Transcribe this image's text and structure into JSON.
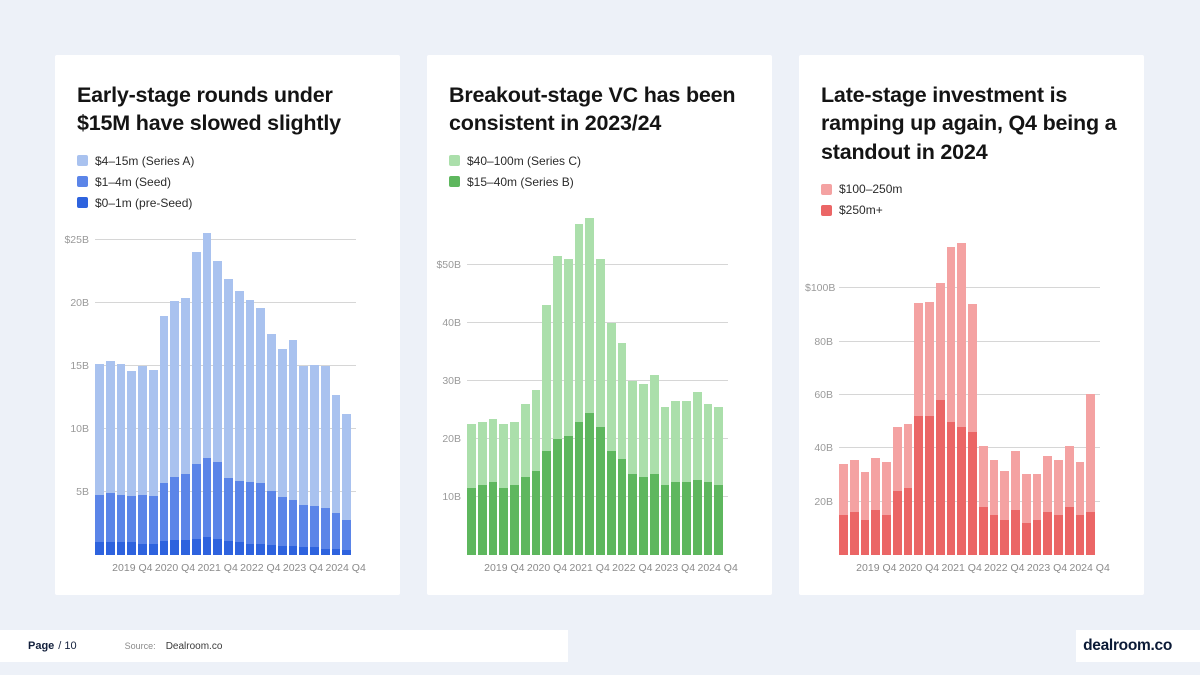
{
  "footer": {
    "page_label": "Page",
    "page_number": "/ 10",
    "source_label": "Source:",
    "source_value": "Dealroom.co",
    "brand": "dealroom.co"
  },
  "colors": {
    "background": "#edf1f8",
    "card": "#ffffff",
    "series_a_blue": "#a9c2ef",
    "seed_blue": "#5b85e8",
    "preseed_blue": "#2e63de",
    "series_c_green": "#abdfab",
    "series_b_green": "#5eb75e",
    "light_red": "#f4a2a2",
    "dark_red": "#eb6666"
  },
  "panels": [
    {
      "title": "Early-stage rounds under $15M have slowed slightly",
      "legend": [
        {
          "label": "$4–15m (Series A)",
          "color": "#a9c2ef"
        },
        {
          "label": "$1–4m (Seed)",
          "color": "#5b85e8"
        },
        {
          "label": "$0–1m (pre-Seed)",
          "color": "#2e63de"
        }
      ]
    },
    {
      "title": "Breakout-stage VC has been consistent in 2023/24",
      "legend": [
        {
          "label": "$40–100m (Series C)",
          "color": "#abdfab"
        },
        {
          "label": "$15–40m (Series B)",
          "color": "#5eb75e"
        }
      ]
    },
    {
      "title": "Late-stage investment is ramping up again, Q4 being a standout in 2024",
      "legend": [
        {
          "label": "$100–250m",
          "color": "#f4a2a2"
        },
        {
          "label": "$250m+",
          "color": "#eb6666"
        }
      ]
    }
  ],
  "chart_data": [
    {
      "type": "bar",
      "stacked": true,
      "title": "Early-stage rounds under $15M have slowed slightly",
      "units": "$B",
      "categories": [
        "2019 Q1",
        "2019 Q2",
        "2019 Q3",
        "2019 Q4",
        "2020 Q1",
        "2020 Q2",
        "2020 Q3",
        "2020 Q4",
        "2021 Q1",
        "2021 Q2",
        "2021 Q3",
        "2021 Q4",
        "2022 Q1",
        "2022 Q2",
        "2022 Q3",
        "2022 Q4",
        "2023 Q1",
        "2023 Q2",
        "2023 Q3",
        "2023 Q4",
        "2024 Q1",
        "2024 Q2",
        "2024 Q3",
        "2024 Q4"
      ],
      "ylim": [
        0,
        26
      ],
      "grid": true,
      "yticks": [
        {
          "value": 25,
          "label": "$25B"
        },
        {
          "value": 20,
          "label": "20B"
        },
        {
          "value": 15,
          "label": "15B"
        },
        {
          "value": 10,
          "label": "10B"
        },
        {
          "value": 5,
          "label": "5B"
        }
      ],
      "x_ticks": [
        {
          "index": 3,
          "label": "2019 Q4"
        },
        {
          "index": 7,
          "label": "2020 Q4"
        },
        {
          "index": 11,
          "label": "2021 Q4"
        },
        {
          "index": 15,
          "label": "2022 Q4"
        },
        {
          "index": 19,
          "label": "2023 Q4"
        },
        {
          "index": 23,
          "label": "2024 Q4"
        }
      ],
      "series": [
        {
          "name": "$0–1m (pre-Seed)",
          "color": "#2e63de",
          "values": [
            1.0,
            1.0,
            1.0,
            1.0,
            0.9,
            0.9,
            1.1,
            1.2,
            1.2,
            1.3,
            1.4,
            1.3,
            1.1,
            1.0,
            0.9,
            0.9,
            0.8,
            0.7,
            0.7,
            0.6,
            0.6,
            0.5,
            0.5,
            0.4
          ]
        },
        {
          "name": "$1–4m (Seed)",
          "color": "#5b85e8",
          "values": [
            3.8,
            3.9,
            3.8,
            3.7,
            3.9,
            3.8,
            4.6,
            5.0,
            5.2,
            5.9,
            6.3,
            6.1,
            5.0,
            4.9,
            4.9,
            4.8,
            4.3,
            3.9,
            3.7,
            3.4,
            3.3,
            3.2,
            2.8,
            2.4
          ]
        },
        {
          "name": "$4–15m (Series A)",
          "color": "#a9c2ef",
          "values": [
            10.4,
            10.5,
            10.4,
            9.9,
            10.2,
            10.0,
            13.3,
            14.0,
            14.0,
            16.9,
            17.9,
            16.0,
            15.8,
            15.1,
            14.5,
            13.9,
            12.5,
            11.8,
            12.7,
            11.0,
            11.2,
            11.3,
            9.4,
            8.4
          ]
        }
      ]
    },
    {
      "type": "bar",
      "stacked": true,
      "title": "Breakout-stage VC has been consistent in 2023/24",
      "units": "$B",
      "categories": [
        "2019 Q1",
        "2019 Q2",
        "2019 Q3",
        "2019 Q4",
        "2020 Q1",
        "2020 Q2",
        "2020 Q3",
        "2020 Q4",
        "2021 Q1",
        "2021 Q2",
        "2021 Q3",
        "2021 Q4",
        "2022 Q1",
        "2022 Q2",
        "2022 Q3",
        "2022 Q4",
        "2023 Q1",
        "2023 Q2",
        "2023 Q3",
        "2023 Q4",
        "2024 Q1",
        "2024 Q2",
        "2024 Q3",
        "2024 Q4"
      ],
      "ylim": [
        0,
        60
      ],
      "grid": true,
      "yticks": [
        {
          "value": 50,
          "label": "$50B"
        },
        {
          "value": 40,
          "label": "40B"
        },
        {
          "value": 30,
          "label": "30B"
        },
        {
          "value": 20,
          "label": "20B"
        },
        {
          "value": 10,
          "label": "10B"
        }
      ],
      "x_ticks": [
        {
          "index": 3,
          "label": "2019 Q4"
        },
        {
          "index": 7,
          "label": "2020 Q4"
        },
        {
          "index": 11,
          "label": "2021 Q4"
        },
        {
          "index": 15,
          "label": "2022 Q4"
        },
        {
          "index": 19,
          "label": "2023 Q4"
        },
        {
          "index": 23,
          "label": "2024 Q4"
        }
      ],
      "series": [
        {
          "name": "$15–40m (Series B)",
          "color": "#5eb75e",
          "values": [
            11.5,
            12.0,
            12.5,
            11.5,
            12.0,
            13.5,
            14.5,
            18.0,
            20.0,
            20.5,
            23.0,
            24.5,
            22.0,
            18.0,
            16.5,
            14.0,
            13.5,
            14.0,
            12.0,
            12.5,
            12.5,
            13.0,
            12.5,
            12.0
          ]
        },
        {
          "name": "$40–100m (Series C)",
          "color": "#abdfab",
          "values": [
            11.0,
            11.0,
            11.0,
            11.0,
            11.0,
            12.5,
            14.0,
            25.0,
            31.5,
            30.5,
            34.0,
            33.5,
            29.0,
            22.0,
            20.0,
            16.0,
            16.0,
            17.0,
            13.5,
            14.0,
            14.0,
            15.0,
            13.5,
            13.5
          ]
        }
      ]
    },
    {
      "type": "bar",
      "stacked": true,
      "title": "Late-stage investment is ramping up again, Q4 being a standout in 2024",
      "units": "$B",
      "categories": [
        "2019 Q1",
        "2019 Q2",
        "2019 Q3",
        "2019 Q4",
        "2020 Q1",
        "2020 Q2",
        "2020 Q3",
        "2020 Q4",
        "2021 Q1",
        "2021 Q2",
        "2021 Q3",
        "2021 Q4",
        "2022 Q1",
        "2022 Q2",
        "2022 Q3",
        "2022 Q4",
        "2023 Q1",
        "2023 Q2",
        "2023 Q3",
        "2023 Q4",
        "2024 Q1",
        "2024 Q2",
        "2024 Q3",
        "2024 Q4"
      ],
      "ylim": [
        0,
        120
      ],
      "grid": true,
      "yticks": [
        {
          "value": 100,
          "label": "$100B"
        },
        {
          "value": 80,
          "label": "80B"
        },
        {
          "value": 60,
          "label": "60B"
        },
        {
          "value": 40,
          "label": "40B"
        },
        {
          "value": 20,
          "label": "20B"
        }
      ],
      "x_ticks": [
        {
          "index": 3,
          "label": "2019 Q4"
        },
        {
          "index": 7,
          "label": "2020 Q4"
        },
        {
          "index": 11,
          "label": "2021 Q4"
        },
        {
          "index": 15,
          "label": "2022 Q4"
        },
        {
          "index": 19,
          "label": "2023 Q4"
        },
        {
          "index": 23,
          "label": "2024 Q4"
        }
      ],
      "series": [
        {
          "name": "$250m+",
          "color": "#eb6666",
          "values": [
            15,
            16,
            13,
            17,
            15,
            24,
            25,
            52,
            52,
            58,
            50,
            48,
            46,
            18,
            15,
            13,
            17,
            12,
            13,
            16,
            15,
            18,
            15,
            16
          ]
        },
        {
          "name": "$100–250m",
          "color": "#f4a2a2",
          "values": [
            19,
            19.5,
            18,
            19.5,
            20,
            24,
            24,
            42.5,
            43,
            44,
            65.5,
            69,
            48,
            23,
            20.5,
            18.5,
            22,
            18.5,
            17.5,
            21,
            20.5,
            23,
            20,
            44.5
          ]
        }
      ]
    }
  ]
}
